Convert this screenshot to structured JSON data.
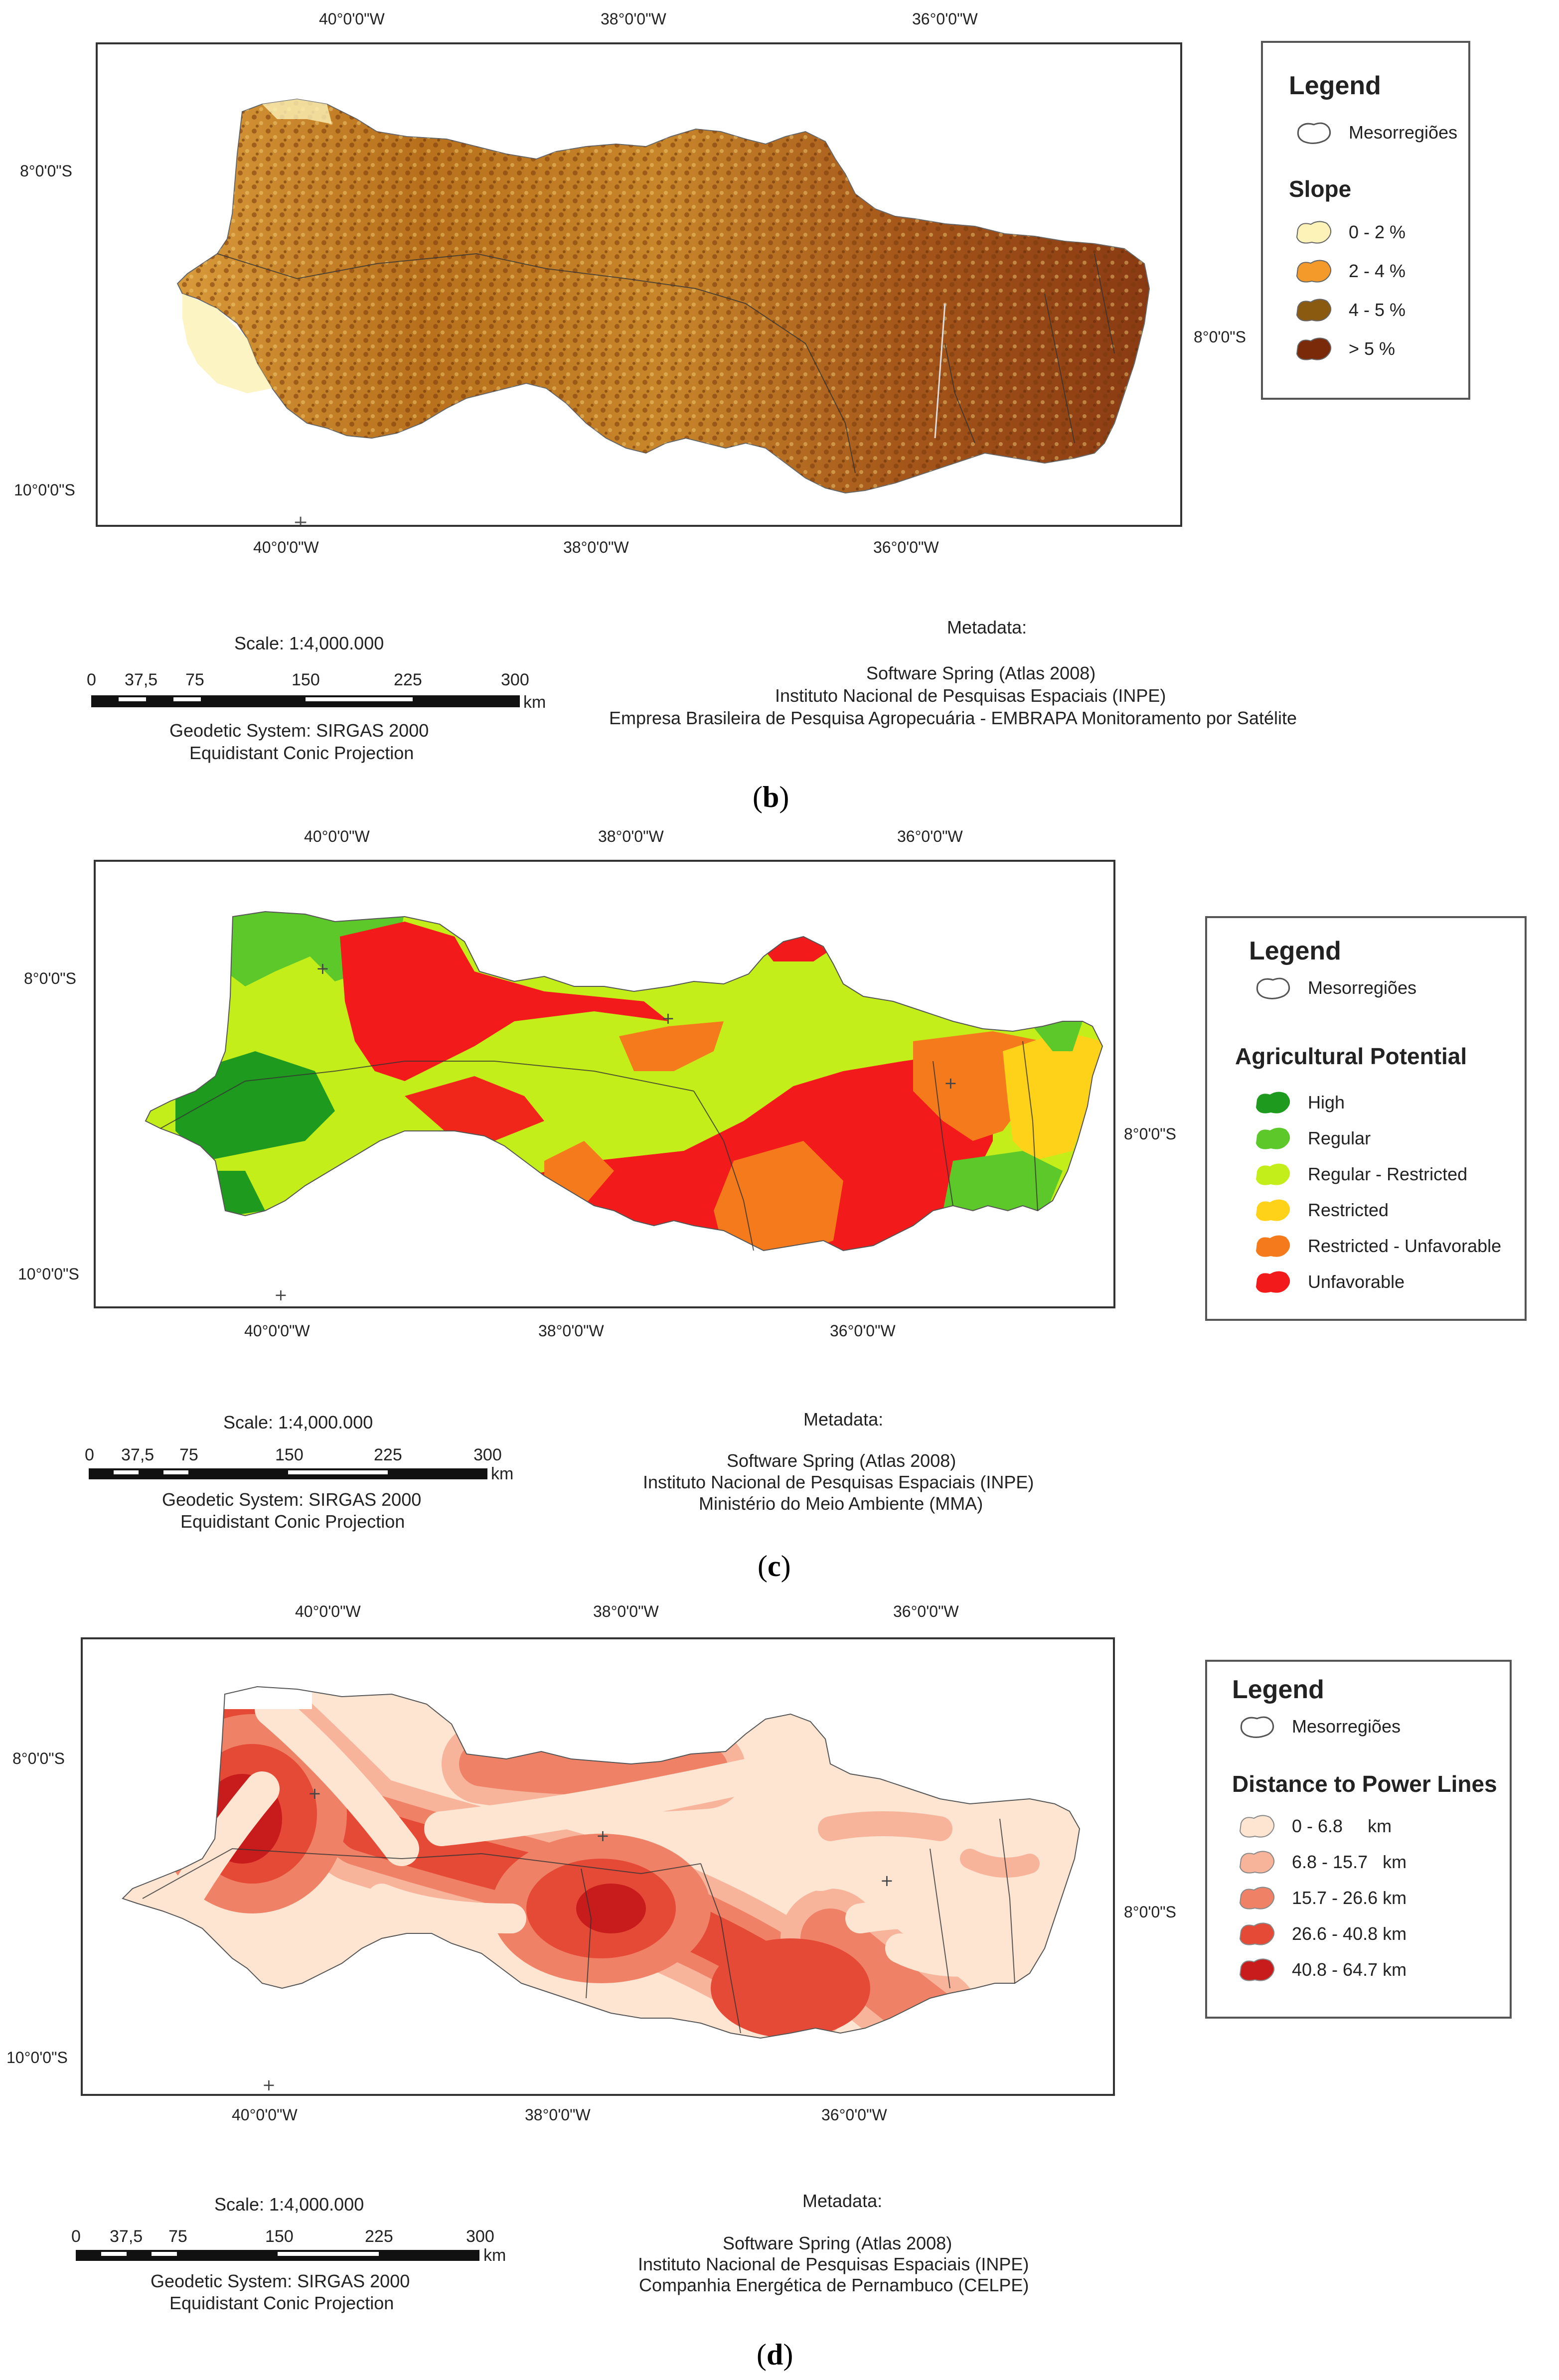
{
  "panels": [
    {
      "id": "b",
      "caption_letter": "b",
      "coords": {
        "top": [
          "40°0'0\"W",
          "38°0'0\"W",
          "36°0'0\"W"
        ],
        "bottom": [
          "40°0'0\"W",
          "38°0'0\"W",
          "36°0'0\"W"
        ],
        "left": [
          "8°0'0\"S",
          "10°0'0\"S"
        ],
        "right": [
          "8°0'0\"S"
        ]
      },
      "legend": {
        "title": "Legend",
        "boundary_label": "Mesorregiões",
        "subtitle": "Slope",
        "classes": [
          {
            "label": "0 - 2 %",
            "color": "#fdf2b8"
          },
          {
            "label": "2 - 4 %",
            "color": "#f39a2a"
          },
          {
            "label": "4 - 5 %",
            "color": "#8a5a10"
          },
          {
            "label": "> 5 %",
            "color": "#7a2a08"
          }
        ]
      },
      "scale": {
        "title": "Scale: 1:4,000.000",
        "ticks": [
          "0",
          "37,5",
          "75",
          "150",
          "225",
          "300"
        ],
        "unit": "km",
        "geodetic": "Geodetic System: SIRGAS 2000",
        "projection": "Equidistant Conic Projection"
      },
      "metadata": {
        "title": "Metadata:",
        "lines": [
          "Software Spring (Atlas 2008)",
          "Instituto Nacional de Pesquisas Espaciais (INPE)",
          "Empresa Brasileira de Pesquisa Agropecuária - EMBRAPA Monitoramento por Satélite"
        ]
      }
    },
    {
      "id": "c",
      "caption_letter": "c",
      "coords": {
        "top": [
          "40°0'0\"W",
          "38°0'0\"W",
          "36°0'0\"W"
        ],
        "bottom": [
          "40°0'0\"W",
          "38°0'0\"W",
          "36°0'0\"W"
        ],
        "left": [
          "8°0'0\"S",
          "10°0'0\"S"
        ],
        "right": [
          "8°0'0\"S"
        ]
      },
      "legend": {
        "title": "Legend",
        "boundary_label": "Mesorregiões",
        "subtitle": "Agricultural Potential",
        "classes": [
          {
            "label": "High",
            "color": "#1e9a1e"
          },
          {
            "label": "Regular",
            "color": "#5cc82a"
          },
          {
            "label": "Regular - Restricted",
            "color": "#c4ee1a"
          },
          {
            "label": "Restricted",
            "color": "#ffd21a"
          },
          {
            "label": "Restricted - Unfavorable",
            "color": "#f57a1c"
          },
          {
            "label": "Unfavorable",
            "color": "#f21a1a"
          }
        ]
      },
      "scale": {
        "title": "Scale: 1:4,000.000",
        "ticks": [
          "0",
          "37,5",
          "75",
          "150",
          "225",
          "300"
        ],
        "unit": "km",
        "geodetic": "Geodetic System: SIRGAS 2000",
        "projection": "Equidistant Conic Projection"
      },
      "metadata": {
        "title": "Metadata:",
        "lines": [
          "Software Spring (Atlas 2008)",
          "Instituto Nacional de Pesquisas Espaciais (INPE)",
          "Ministério do Meio Ambiente (MMA)"
        ]
      }
    },
    {
      "id": "d",
      "caption_letter": "d",
      "coords": {
        "top": [
          "40°0'0\"W",
          "38°0'0\"W",
          "36°0'0\"W"
        ],
        "bottom": [
          "40°0'0\"W",
          "38°0'0\"W",
          "36°0'0\"W"
        ],
        "left": [
          "8°0'0\"S",
          "10°0'0\"S"
        ],
        "right": [
          "8°0'0\"S"
        ]
      },
      "legend": {
        "title": "Legend",
        "boundary_label": "Mesorregiões",
        "subtitle": "Distance to Power Lines",
        "classes": [
          {
            "label": "0 - 6.8     km",
            "color": "#fde5d2"
          },
          {
            "label": "6.8 - 15.7   km",
            "color": "#f7b49a"
          },
          {
            "label": "15.7 - 26.6 km",
            "color": "#ef8266"
          },
          {
            "label": "26.6 - 40.8 km",
            "color": "#e54a36"
          },
          {
            "label": "40.8 - 64.7 km",
            "color": "#c81c1c"
          }
        ]
      },
      "scale": {
        "title": "Scale: 1:4,000.000",
        "ticks": [
          "0",
          "37,5",
          "75",
          "150",
          "225",
          "300"
        ],
        "unit": "km",
        "geodetic": "Geodetic System: SIRGAS 2000",
        "projection": "Equidistant Conic Projection"
      },
      "metadata": {
        "title": "Metadata:",
        "lines": [
          "Software Spring (Atlas 2008)",
          "Instituto Nacional de Pesquisas Espaciais (INPE)",
          "Companhia Energética de Pernambuco (CELPE)"
        ]
      }
    }
  ]
}
